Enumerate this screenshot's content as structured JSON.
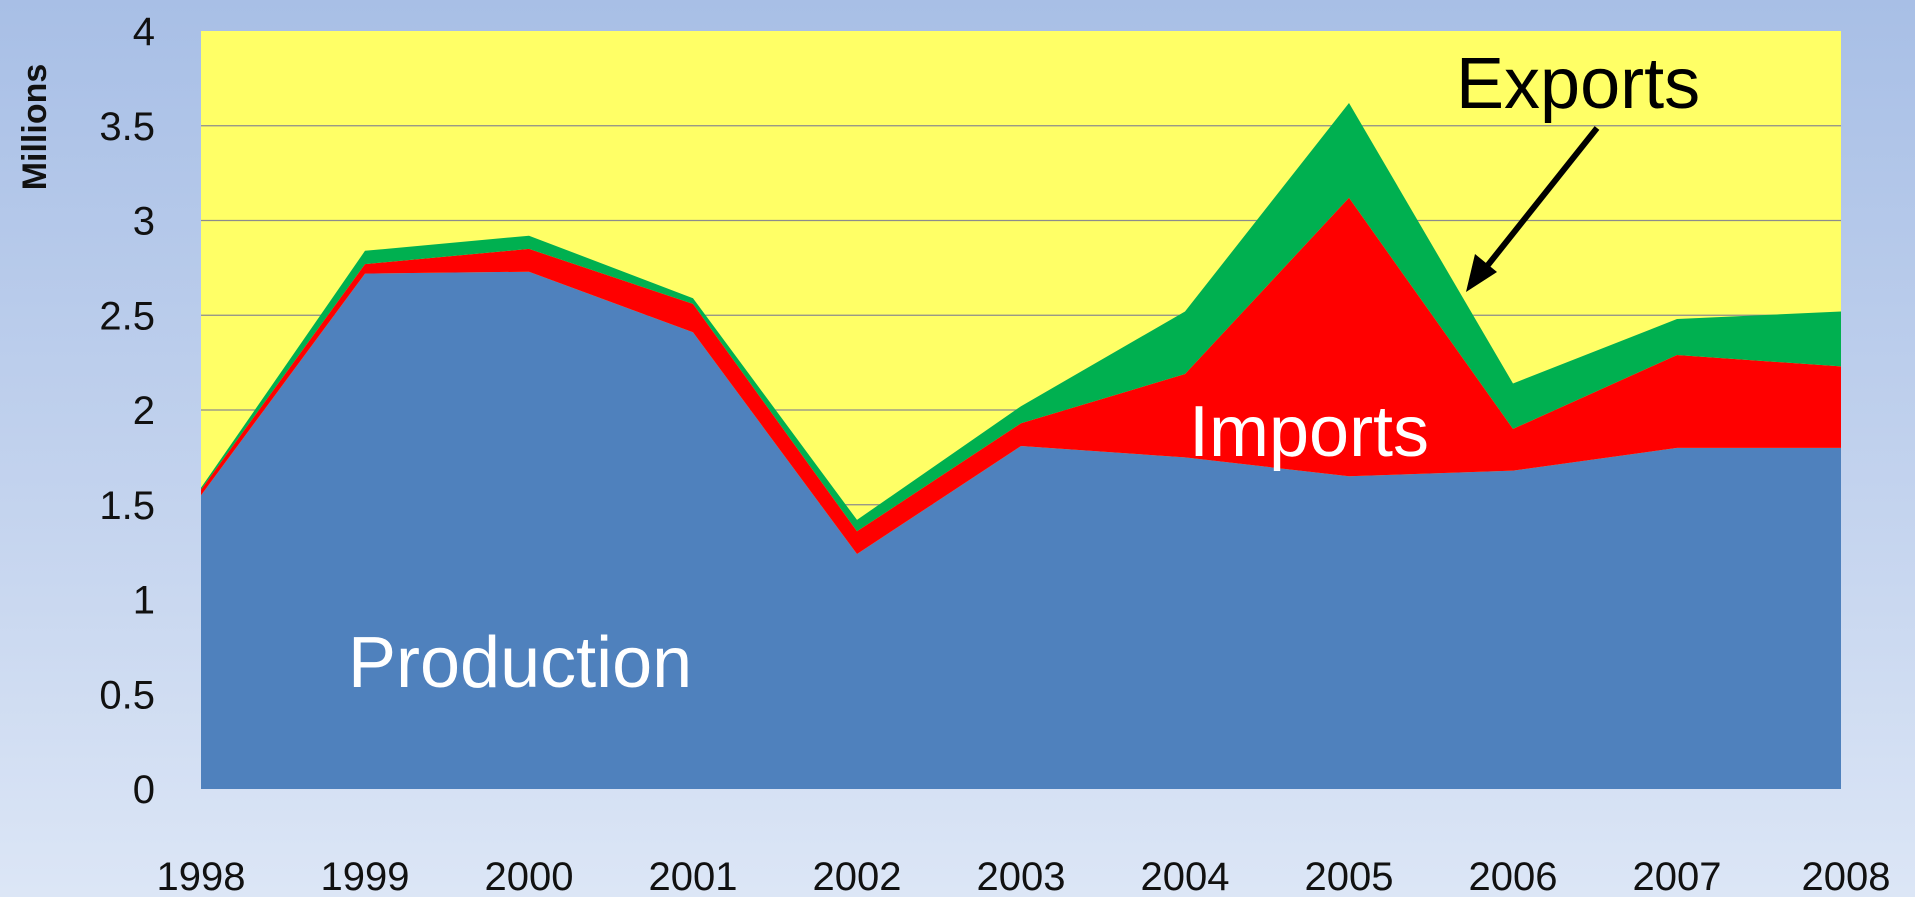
{
  "chart_data": {
    "type": "area",
    "stacked": true,
    "ylabel": "Millions",
    "ylim": [
      0,
      4
    ],
    "yticks": [
      "0",
      "0.5",
      "1",
      "1.5",
      "2",
      "2.5",
      "3",
      "3.5",
      "4"
    ],
    "categories": [
      "1998",
      "1999",
      "2000",
      "2001",
      "2002",
      "2003",
      "2004",
      "2005",
      "2006",
      "2007",
      "2008"
    ],
    "series": [
      {
        "name": "Production",
        "color": "#4f81bd",
        "values": [
          1.55,
          2.72,
          2.73,
          2.41,
          1.24,
          1.81,
          1.75,
          1.65,
          1.68,
          1.8,
          1.8
        ]
      },
      {
        "name": "Imports",
        "color": "#ff0000",
        "values": [
          0.03,
          0.05,
          0.12,
          0.15,
          0.12,
          0.12,
          0.44,
          1.47,
          0.22,
          0.49,
          0.43
        ]
      },
      {
        "name": "Exports",
        "color": "#00b050",
        "values": [
          0.01,
          0.07,
          0.07,
          0.03,
          0.06,
          0.09,
          0.33,
          0.5,
          0.24,
          0.19,
          0.29
        ]
      }
    ],
    "plot_background": "#ffff66",
    "grid": true,
    "annotations": [
      {
        "text": "Production",
        "series": "Production"
      },
      {
        "text": "Imports",
        "series": "Imports"
      },
      {
        "text": "Exports",
        "series": "Exports",
        "arrow": true
      }
    ]
  }
}
